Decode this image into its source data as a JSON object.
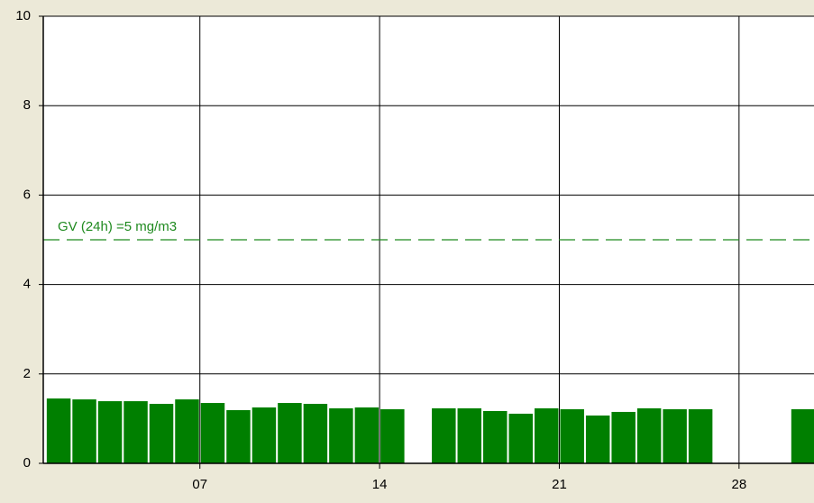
{
  "chart_data": {
    "type": "bar",
    "x": [
      1,
      2,
      3,
      4,
      5,
      6,
      7,
      8,
      9,
      10,
      11,
      12,
      13,
      14,
      15,
      16,
      17,
      18,
      19,
      20,
      21,
      22,
      23,
      24,
      25,
      26,
      27,
      28,
      29,
      30
    ],
    "values": [
      1.45,
      1.43,
      1.39,
      1.39,
      1.33,
      1.43,
      1.35,
      1.19,
      1.25,
      1.35,
      1.33,
      1.23,
      1.25,
      1.21,
      null,
      1.23,
      1.23,
      1.17,
      1.11,
      1.23,
      1.21,
      1.07,
      1.15,
      1.23,
      1.21,
      1.21,
      null,
      null,
      null,
      1.21
    ],
    "color": "#007f00",
    "xlim": [
      0.9,
      30.92
    ],
    "xticks": [
      {
        "value": 7,
        "label": "07"
      },
      {
        "value": 14,
        "label": "14"
      },
      {
        "value": 21,
        "label": "21"
      },
      {
        "value": 28,
        "label": "28"
      }
    ],
    "ylim": [
      0,
      10
    ],
    "yticks": [
      0,
      2,
      4,
      6,
      8,
      10
    ],
    "grid": true,
    "annotations": [
      {
        "text": "GV (24h) =5 mg/m3",
        "y": 5,
        "color": "#1f8a1f"
      }
    ]
  }
}
